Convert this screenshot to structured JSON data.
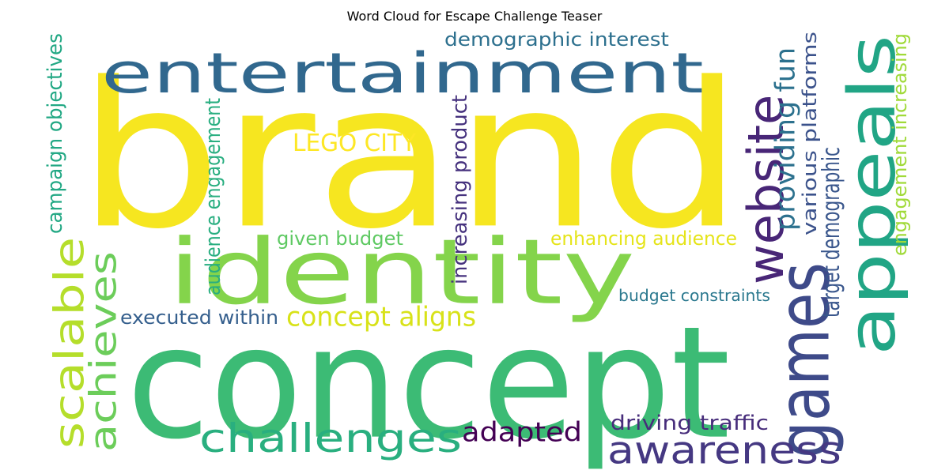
{
  "title": "Word Cloud for Escape Challenge Teaser",
  "words": [
    {
      "text": "brand",
      "color": "#f6e620"
    },
    {
      "text": "concept",
      "color": "#3cbb75"
    },
    {
      "text": "entertainment",
      "color": "#31688e"
    },
    {
      "text": "identity",
      "color": "#84d44b"
    },
    {
      "text": "appeals",
      "color": "#21a585"
    },
    {
      "text": "games",
      "color": "#3e4a89"
    },
    {
      "text": "website",
      "color": "#482677"
    },
    {
      "text": "awareness",
      "color": "#453882"
    },
    {
      "text": "challenges",
      "color": "#29af7f"
    },
    {
      "text": "scalable",
      "color": "#b5de2b"
    },
    {
      "text": "achieves",
      "color": "#6ccd5a"
    },
    {
      "text": "adapted",
      "color": "#440154"
    },
    {
      "text": "concept aligns",
      "color": "#d8e219"
    },
    {
      "text": "providing fun",
      "color": "#2c718e"
    },
    {
      "text": "target demographic",
      "color": "#39568c"
    },
    {
      "text": "LEGO CITY",
      "color": "#fde725"
    },
    {
      "text": "driving traffic",
      "color": "#472d7b"
    },
    {
      "text": "enhancing audience",
      "color": "#e5e419"
    },
    {
      "text": "given budget",
      "color": "#5ec962"
    },
    {
      "text": "executed within",
      "color": "#355f8d"
    },
    {
      "text": "demographic interest",
      "color": "#2d708e"
    },
    {
      "text": "increasing product",
      "color": "#46327e"
    },
    {
      "text": "audience engagement",
      "color": "#28ae80"
    },
    {
      "text": "campaign objectives",
      "color": "#22a884"
    },
    {
      "text": "various platforms",
      "color": "#3b528b"
    },
    {
      "text": "engagement increasing",
      "color": "#a0da39"
    },
    {
      "text": "budget constraints",
      "color": "#2a788e"
    }
  ]
}
